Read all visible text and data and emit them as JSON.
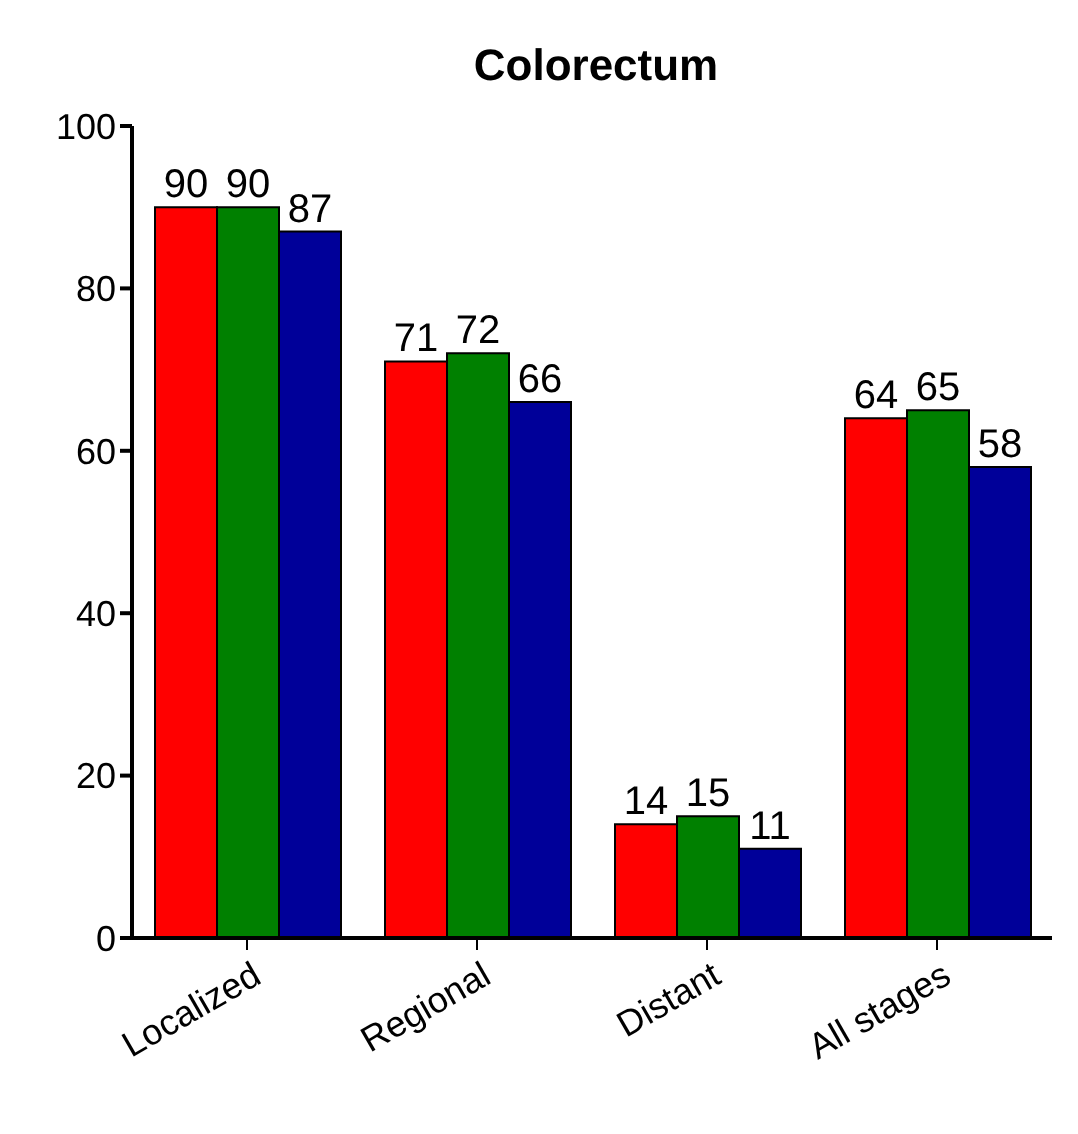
{
  "chart_data": {
    "type": "bar",
    "title": "Colorectum",
    "categories": [
      "Localized",
      "Regional",
      "Distant",
      "All stages"
    ],
    "series": [
      {
        "color": "#ff0000",
        "values": [
          90,
          71,
          14,
          64
        ]
      },
      {
        "color": "#008000",
        "values": [
          90,
          72,
          15,
          65
        ]
      },
      {
        "color": "#000099",
        "values": [
          87,
          66,
          11,
          58
        ]
      }
    ],
    "ylim": [
      0,
      100
    ],
    "yticks": [
      0,
      20,
      40,
      60,
      80,
      100
    ],
    "data_labels": true,
    "grid": false,
    "legend": false
  }
}
